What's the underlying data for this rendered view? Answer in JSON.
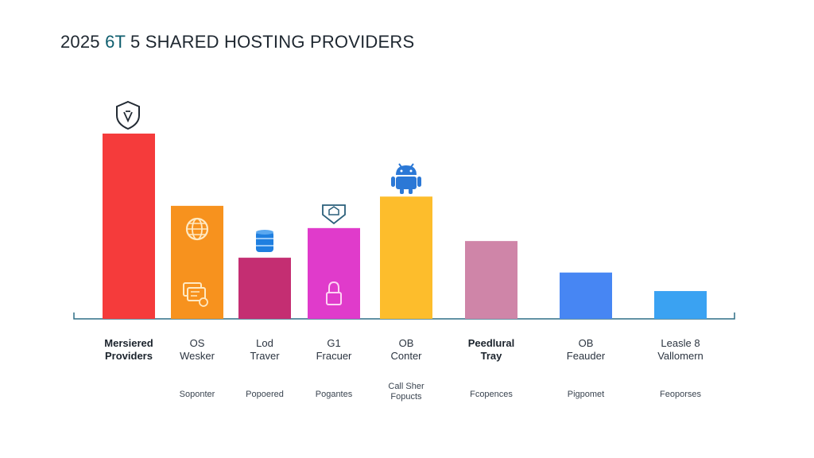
{
  "title": {
    "prefix": "2025 ",
    "accent": "6T",
    "rest": " 5 SHARED HOSTING PROVIDERS"
  },
  "chart_data": {
    "type": "bar",
    "title": "2025 6T 5 SHARED HOSTING PROVIDERS",
    "xlabel": "",
    "ylabel": "",
    "ylim": [
      0,
      100
    ],
    "grid": false,
    "categories": [
      [
        "Mersiered",
        "Providers"
      ],
      [
        "OS",
        "Wesker"
      ],
      [
        "Lod",
        "Traver"
      ],
      [
        "G1",
        "Fracuer"
      ],
      [
        "OB",
        "Conter"
      ],
      [
        "Peedlural",
        "Tray"
      ],
      [
        "OB",
        "Feauder"
      ],
      [
        "Leasle 8",
        "Vallomern"
      ]
    ],
    "sublabels": [
      "Soponter",
      "Popoered",
      "Pogantes",
      "Call Sher Fopucts",
      "Fcopences",
      "Pigpomet",
      "Feoporses"
    ],
    "values": [
      100,
      61,
      33,
      49,
      66,
      42,
      25,
      15
    ],
    "colors": [
      "#f53b3b",
      "#f7921e",
      "#c42e72",
      "#e03bcb",
      "#fdbd2c",
      "#cf85a8",
      "#4786f3",
      "#3aa2f2"
    ],
    "icons": [
      "shield-icon",
      "globe-icon",
      "database-icon",
      "location-pin-icon",
      "android-icon",
      "",
      "",
      ""
    ]
  }
}
